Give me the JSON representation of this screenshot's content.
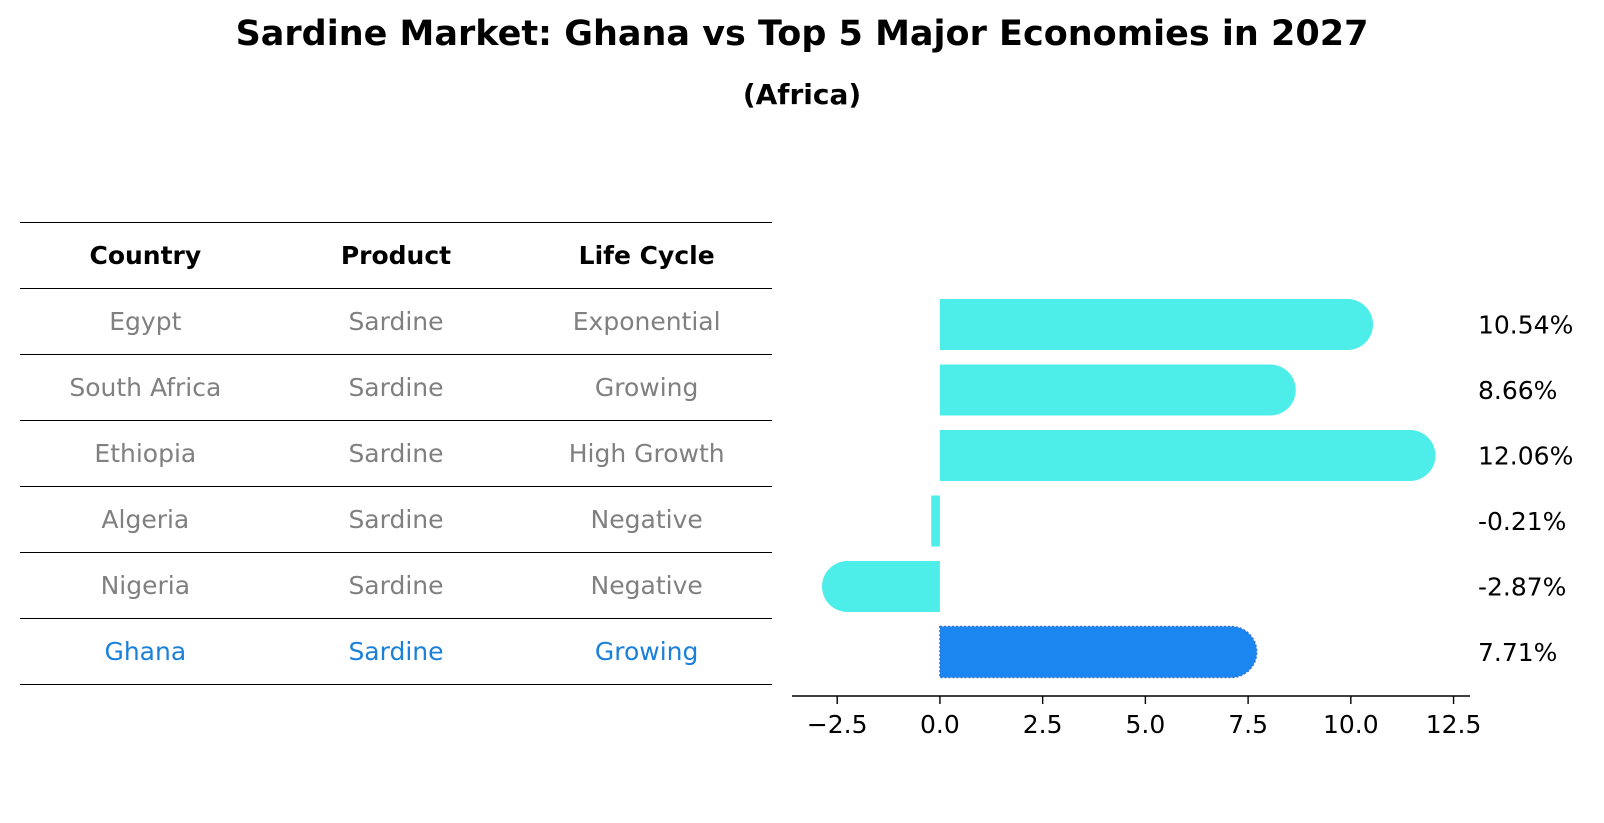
{
  "title": "Sardine Market: Ghana vs Top 5 Major Economies in 2027",
  "subtitle": "(Africa)",
  "table": {
    "headers": [
      "Country",
      "Product",
      "Life Cycle"
    ],
    "rows": [
      [
        "Egypt",
        "Sardine",
        "Exponential"
      ],
      [
        "South Africa",
        "Sardine",
        "Growing"
      ],
      [
        "Ethiopia",
        "Sardine",
        "High Growth"
      ],
      [
        "Algeria",
        "Sardine",
        "Negative"
      ],
      [
        "Nigeria",
        "Sardine",
        "Negative"
      ],
      [
        "Ghana",
        "Sardine",
        "Growing"
      ]
    ]
  },
  "chart_data": {
    "type": "bar",
    "orientation": "horizontal",
    "categories": [
      "Egypt",
      "South Africa",
      "Ethiopia",
      "Algeria",
      "Nigeria",
      "Ghana"
    ],
    "values": [
      10.54,
      8.66,
      12.06,
      -0.21,
      -2.87,
      7.71
    ],
    "value_labels": [
      "10.54%",
      "8.66%",
      "12.06%",
      "-0.21%",
      "-2.87%",
      "7.71%"
    ],
    "highlight": "Ghana",
    "xlim": [
      -3.6,
      12.9
    ],
    "xticks": [
      -2.5,
      0.0,
      2.5,
      5.0,
      7.5,
      10.0,
      12.5
    ],
    "xtick_labels": [
      "−2.5",
      "0.0",
      "2.5",
      "5.0",
      "7.5",
      "10.0",
      "12.5"
    ],
    "colors": {
      "default": "#4DEDEA",
      "highlight": "#1A86F0"
    }
  }
}
